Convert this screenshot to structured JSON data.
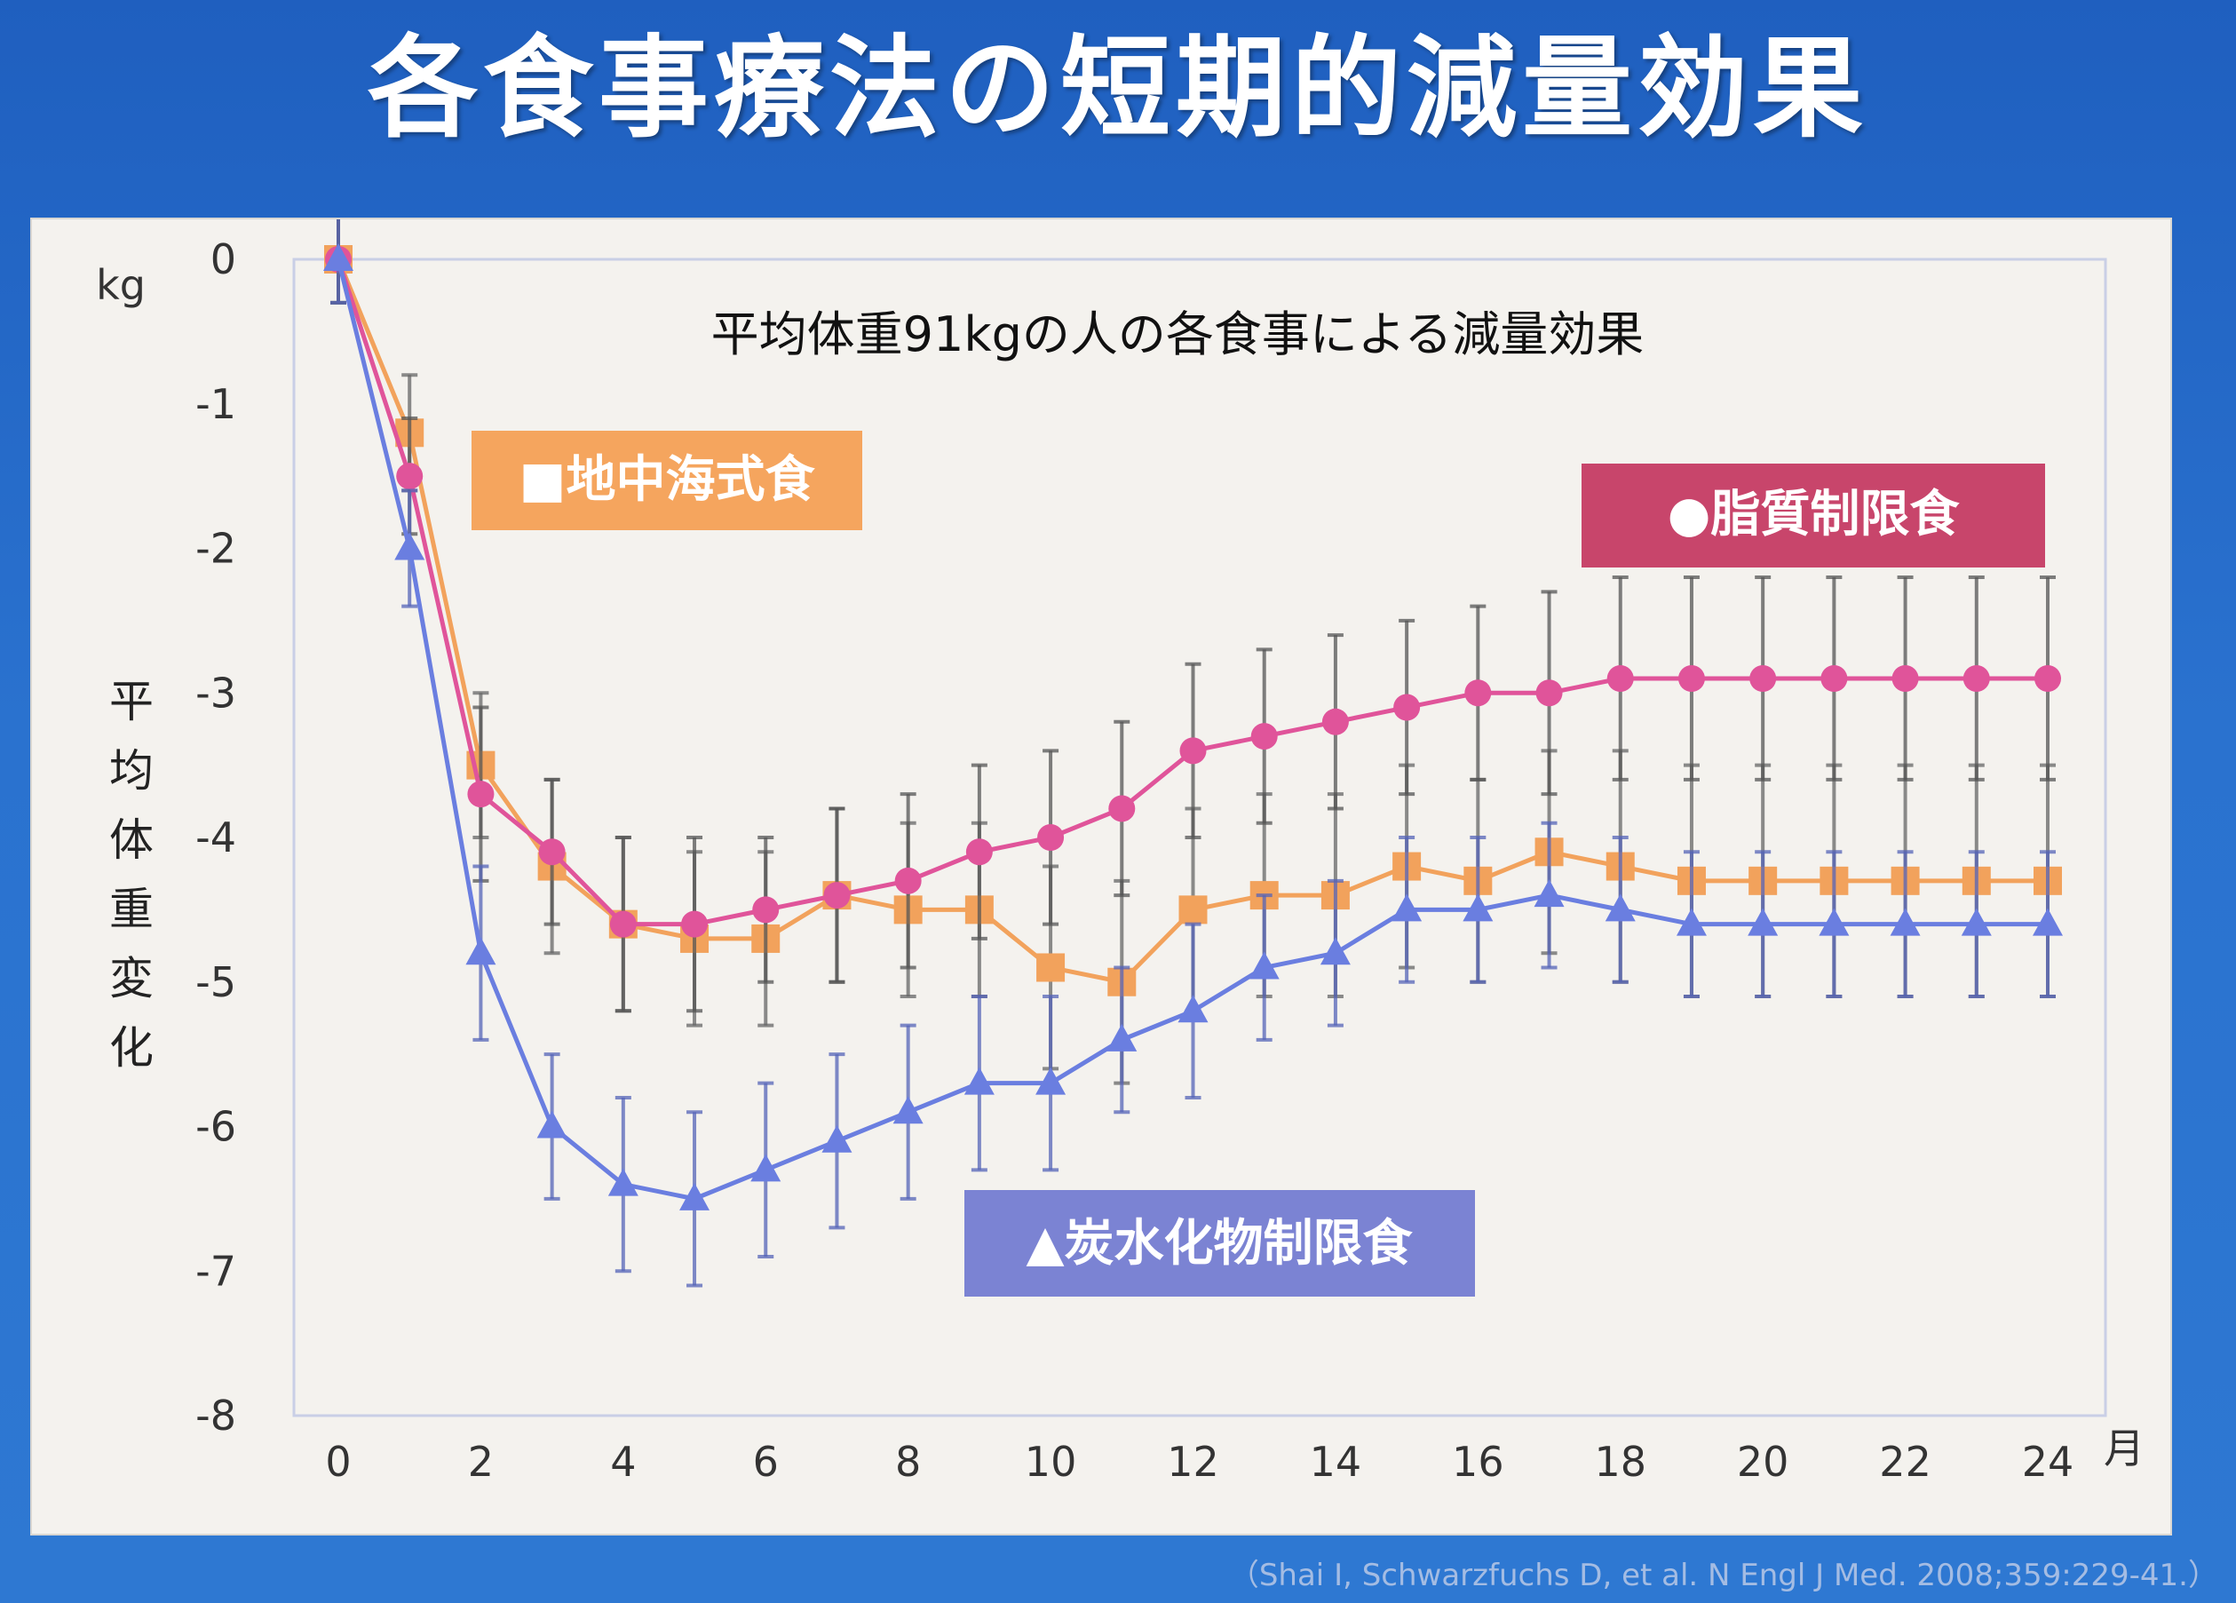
{
  "slide": {
    "title": "各食事療法の短期的減量効果",
    "citation": "（Shai I, Schwarzfuchs D, et al. N Engl J Med. 2008;359:229-41.）"
  },
  "chart_data": {
    "type": "line",
    "title": "平均体重91kgの人の各食事による減量効果",
    "ylabel": "平均体重変化",
    "yunit": "kg",
    "xunit": "月",
    "ylim": [
      -8,
      0
    ],
    "xlim": [
      0,
      24
    ],
    "yticks": [
      "0",
      "-1",
      "-2",
      "-3",
      "-4",
      "-5",
      "-6",
      "-7",
      "-8"
    ],
    "xticks": [
      "0",
      "2",
      "4",
      "6",
      "8",
      "10",
      "12",
      "14",
      "16",
      "18",
      "20",
      "22",
      "24"
    ],
    "x": [
      0,
      1,
      2,
      3,
      4,
      5,
      6,
      7,
      8,
      9,
      10,
      11,
      12,
      13,
      14,
      15,
      16,
      17,
      18,
      19,
      20,
      21,
      22,
      23,
      24
    ],
    "grid": false,
    "series": [
      {
        "name": "■地中海式食",
        "marker": "square",
        "color": "#f2a25c",
        "legend_bg": "#f5a55e",
        "values": [
          0,
          -1.2,
          -3.5,
          -4.2,
          -4.6,
          -4.7,
          -4.7,
          -4.4,
          -4.5,
          -4.5,
          -4.9,
          -5.0,
          -4.5,
          -4.4,
          -4.4,
          -4.2,
          -4.3,
          -4.1,
          -4.2,
          -4.3,
          -4.3,
          -4.3,
          -4.3,
          -4.3,
          -4.3
        ],
        "err": [
          0.3,
          0.4,
          0.5,
          0.6,
          0.6,
          0.6,
          0.6,
          0.6,
          0.6,
          0.6,
          0.7,
          0.7,
          0.7,
          0.7,
          0.7,
          0.7,
          0.7,
          0.7,
          0.8,
          0.8,
          0.8,
          0.8,
          0.8,
          0.8,
          0.8
        ]
      },
      {
        "name": "●脂質制限食",
        "marker": "circle",
        "color": "#e0549a",
        "legend_bg": "#c8456b",
        "values": [
          0,
          -1.5,
          -3.7,
          -4.1,
          -4.6,
          -4.6,
          -4.5,
          -4.4,
          -4.3,
          -4.1,
          -4.0,
          -3.8,
          -3.4,
          -3.3,
          -3.2,
          -3.1,
          -3.0,
          -3.0,
          -2.9,
          -2.9,
          -2.9,
          -2.9,
          -2.9,
          -2.9,
          -2.9
        ],
        "err": [
          0.3,
          0.4,
          0.6,
          0.5,
          0.6,
          0.6,
          0.5,
          0.6,
          0.6,
          0.6,
          0.6,
          0.6,
          0.6,
          0.6,
          0.6,
          0.6,
          0.6,
          0.7,
          0.7,
          0.7,
          0.7,
          0.7,
          0.7,
          0.7,
          0.7
        ]
      },
      {
        "name": "▲炭水化物制限食",
        "marker": "triangle",
        "color": "#6a7ee0",
        "legend_bg": "#7b83d3",
        "values": [
          0,
          -2.0,
          -4.8,
          -6.0,
          -6.4,
          -6.5,
          -6.3,
          -6.1,
          -5.9,
          -5.7,
          -5.7,
          -5.4,
          -5.2,
          -4.9,
          -4.8,
          -4.5,
          -4.5,
          -4.4,
          -4.5,
          -4.6,
          -4.6,
          -4.6,
          -4.6,
          -4.6,
          -4.6
        ],
        "err": [
          0.3,
          0.4,
          0.6,
          0.5,
          0.6,
          0.6,
          0.6,
          0.6,
          0.6,
          0.6,
          0.6,
          0.5,
          0.6,
          0.5,
          0.5,
          0.5,
          0.5,
          0.5,
          0.5,
          0.5,
          0.5,
          0.5,
          0.5,
          0.5,
          0.5
        ]
      }
    ]
  },
  "colors": {
    "background": "#2a72cf",
    "panel": "#f4f2ee",
    "plot_border": "#c9cfe6"
  }
}
